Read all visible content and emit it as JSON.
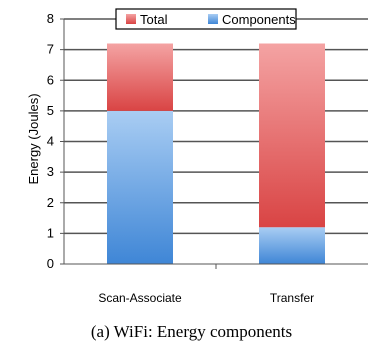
{
  "caption": "(a) WiFi: Energy components",
  "chart_data": {
    "type": "bar",
    "stacked": true,
    "categories": [
      "Scan-Associate",
      "Transfer"
    ],
    "series": [
      {
        "name": "Components",
        "values": [
          5.0,
          1.2
        ],
        "color": "#4a90d9"
      },
      {
        "name": "Total",
        "values": [
          2.2,
          6.0
        ],
        "color": "#e05050"
      }
    ],
    "ylabel": "Energy (Joules)",
    "xlabel": "",
    "ylim": [
      0,
      8
    ],
    "yticks": [
      0,
      1,
      2,
      3,
      4,
      5,
      6,
      7,
      8
    ],
    "grid": true,
    "legend": {
      "position": "top",
      "order": [
        "Total",
        "Components"
      ]
    }
  }
}
